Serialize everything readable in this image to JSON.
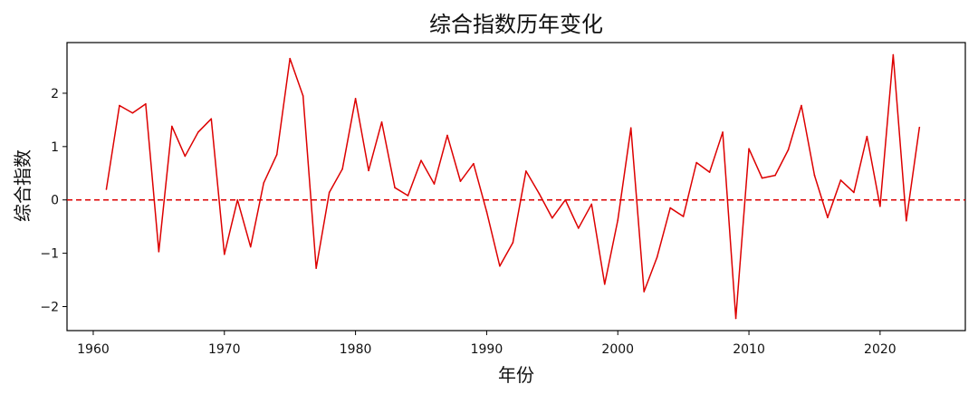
{
  "chart_data": {
    "type": "line",
    "title": "综合指数历年变化",
    "xlabel": "年份",
    "ylabel": "综合指数",
    "xlim": [
      1958,
      2026.5
    ],
    "ylim": [
      -2.45,
      2.95
    ],
    "xticks": [
      1960,
      1970,
      1980,
      1990,
      2000,
      2010,
      2020
    ],
    "yticks": [
      -2,
      -1,
      0,
      1,
      2
    ],
    "ytick_labels": [
      "−2",
      "−1",
      "0",
      "1",
      "2"
    ],
    "grid": false,
    "line_color": "#dd0000",
    "reference_line": {
      "y": 0,
      "style": "dashed",
      "color": "#dd0000"
    },
    "series": [
      {
        "x": [
          1961,
          1962,
          1963,
          1964,
          1965,
          1966,
          1967,
          1968,
          1969,
          1970,
          1971,
          1972,
          1973,
          1974,
          1975,
          1976,
          1977,
          1978,
          1979,
          1980,
          1981,
          1982,
          1983,
          1984,
          1985,
          1986,
          1987,
          1988,
          1989,
          1990,
          1991,
          1992,
          1993,
          1994,
          1995,
          1996,
          1997,
          1998,
          1999,
          2000,
          2001,
          2002,
          2003,
          2004,
          2005,
          2006,
          2007,
          2008,
          2009,
          2010,
          2011,
          2012,
          2013,
          2014,
          2015,
          2016,
          2017,
          2018,
          2019,
          2020,
          2021,
          2022,
          2023
        ],
        "values": [
          0.2,
          1.77,
          1.63,
          1.8,
          -0.97,
          1.38,
          0.82,
          1.27,
          1.52,
          -1.02,
          0.0,
          -0.88,
          0.32,
          0.85,
          2.65,
          1.95,
          -1.28,
          0.14,
          0.58,
          1.9,
          0.55,
          1.46,
          0.23,
          0.08,
          0.74,
          0.3,
          1.21,
          0.35,
          0.68,
          -0.22,
          -1.24,
          -0.8,
          0.54,
          0.12,
          -0.34,
          0.0,
          -0.53,
          -0.08,
          -1.58,
          -0.38,
          1.35,
          -1.72,
          -1.07,
          -0.15,
          -0.31,
          0.7,
          0.52,
          1.27,
          -2.22,
          0.96,
          0.41,
          0.46,
          0.94,
          1.77,
          0.46,
          -0.33,
          0.37,
          0.14,
          1.19,
          -0.12,
          2.72,
          -0.39,
          1.36
        ]
      }
    ]
  }
}
